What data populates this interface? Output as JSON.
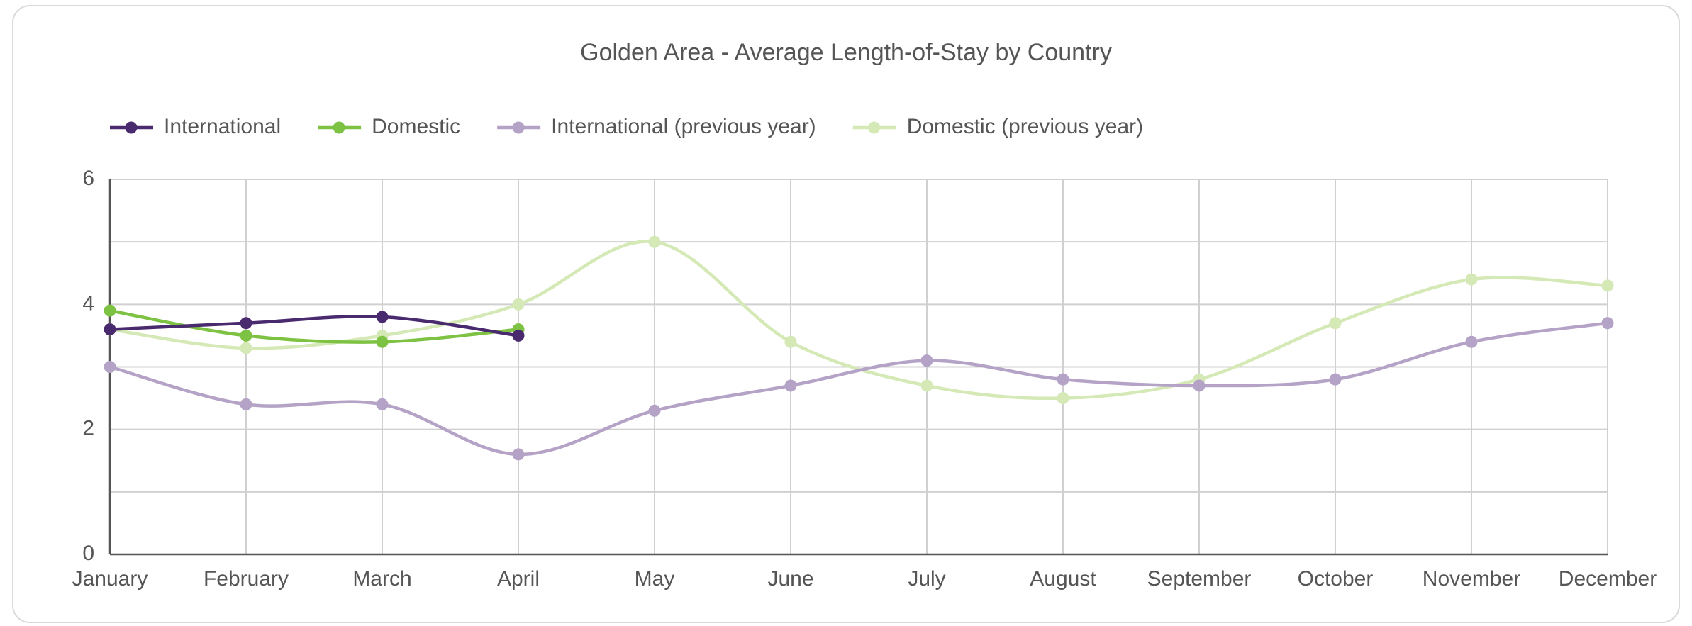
{
  "chart_data": {
    "type": "line",
    "title": "Golden Area - Average Length-of-Stay by Country",
    "categories": [
      "January",
      "February",
      "March",
      "April",
      "May",
      "June",
      "July",
      "August",
      "September",
      "October",
      "November",
      "December"
    ],
    "series": [
      {
        "name": "International",
        "color": "#4a2a6e",
        "values": [
          3.6,
          3.7,
          3.8,
          3.5,
          null,
          null,
          null,
          null,
          null,
          null,
          null,
          null
        ]
      },
      {
        "name": "Domestic",
        "color": "#7dc242",
        "values": [
          3.9,
          3.5,
          3.4,
          3.6,
          null,
          null,
          null,
          null,
          null,
          null,
          null,
          null
        ]
      },
      {
        "name": "International (previous year)",
        "color": "#b4a3c6",
        "values": [
          3.0,
          2.4,
          2.4,
          1.6,
          2.3,
          2.7,
          3.1,
          2.8,
          2.7,
          2.8,
          3.4,
          3.7
        ]
      },
      {
        "name": "Domestic (previous year)",
        "color": "#d4e9b5",
        "values": [
          3.6,
          3.3,
          3.5,
          4.0,
          5.0,
          3.4,
          2.7,
          2.5,
          2.8,
          3.7,
          4.4,
          4.3
        ]
      }
    ],
    "ylim": [
      0,
      6
    ],
    "yticks": [
      0,
      2,
      4,
      6
    ],
    "minor_yticks": [
      1,
      3,
      5
    ],
    "grid": true,
    "legend": "top",
    "smooth": true
  }
}
